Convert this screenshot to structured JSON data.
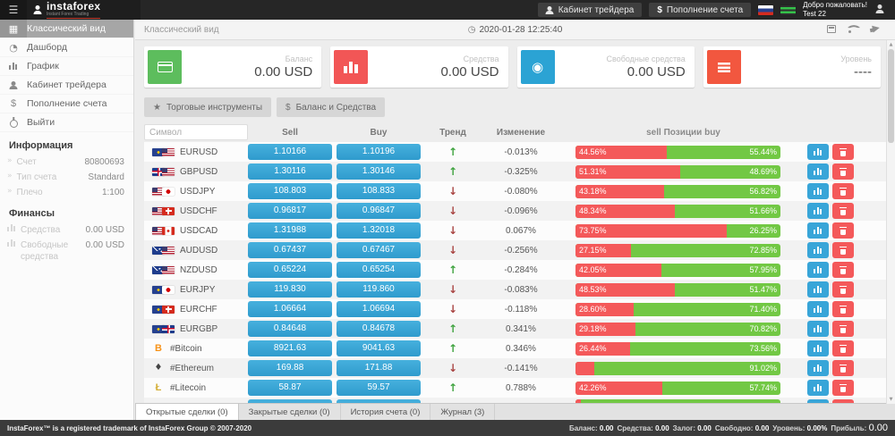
{
  "header": {
    "logo_name": "instaforex",
    "logo_tagline": "Instant Forex Trading",
    "trader_cabinet_label": "Кабинет трейдера",
    "deposit_label": "Пополнение счета",
    "welcome_line1": "Добро пожаловать!",
    "welcome_line2": "Test 22"
  },
  "sidebar": {
    "items": [
      {
        "label": "Классический вид",
        "icon": "classic-view-icon",
        "active": true
      },
      {
        "label": "Дашборд",
        "icon": "dashboard-icon"
      },
      {
        "label": "График",
        "icon": "chart-icon"
      },
      {
        "label": "Кабинет трейдера",
        "icon": "user-icon"
      },
      {
        "label": "Пополнение счета",
        "icon": "dollar-icon"
      },
      {
        "label": "Выйти",
        "icon": "power-icon"
      }
    ],
    "info_title": "Информация",
    "info_rows": [
      {
        "label": "Счет",
        "value": "80800693"
      },
      {
        "label": "Тип счета",
        "value": "Standard"
      },
      {
        "label": "Плечо",
        "value": "1:100"
      }
    ],
    "finance_title": "Финансы",
    "finance_rows": [
      {
        "label": "Средства",
        "value": "0.00 USD"
      },
      {
        "label": "Свободные средства",
        "value": "0.00 USD"
      }
    ]
  },
  "topbar": {
    "title": "Классический вид",
    "datetime": "2020-01-28 12:25:40"
  },
  "cards": [
    {
      "label": "Баланс",
      "value": "0.00 USD",
      "icon": "credit-card-icon",
      "color": "#5dbd5d"
    },
    {
      "label": "Средства",
      "value": "0.00 USD",
      "icon": "bar-chart-icon",
      "color": "#f25656"
    },
    {
      "label": "Свободные средства",
      "value": "0.00 USD",
      "icon": "eye-icon",
      "color": "#2ba3d4"
    },
    {
      "label": "Уровень",
      "value": "----",
      "icon": "menu-lines-icon",
      "color": "#f2573f"
    }
  ],
  "toolbar": {
    "instruments_label": "Торговые инструменты",
    "balance_label": "Баланс и Средства"
  },
  "table": {
    "symbol_placeholder": "Символ",
    "headers": {
      "sell": "Sell",
      "buy": "Buy",
      "trend": "Тренд",
      "change": "Изменение",
      "positions": "sell Позиции buy"
    },
    "trend_glyphs": {
      "up": "↑",
      "down": "↓"
    },
    "rows": [
      {
        "symbol": "EURUSD",
        "icons": [
          {
            "cls": "flag flag-eu",
            "name": "eu-flag-icon"
          },
          {
            "cls": "flag flag-us",
            "name": "us-flag-icon"
          }
        ],
        "sell": "1.10166",
        "buy": "1.10196",
        "trend": "up",
        "change": "-0.013%",
        "sell_pct": 44.56,
        "buy_pct": 55.44,
        "sell_label": "44.56%",
        "buy_label": "55.44%"
      },
      {
        "symbol": "GBPUSD",
        "icons": [
          {
            "cls": "flag flag-gb",
            "name": "gb-flag-icon"
          },
          {
            "cls": "flag flag-us",
            "name": "us-flag-icon"
          }
        ],
        "sell": "1.30116",
        "buy": "1.30146",
        "trend": "up",
        "change": "-0.325%",
        "sell_pct": 51.31,
        "buy_pct": 48.69,
        "sell_label": "51.31%",
        "buy_label": "48.69%"
      },
      {
        "symbol": "USDJPY",
        "icons": [
          {
            "cls": "flag flag-us",
            "name": "us-flag-icon"
          },
          {
            "cls": "flag flag-jp",
            "name": "jp-flag-icon"
          }
        ],
        "sell": "108.803",
        "buy": "108.833",
        "trend": "down",
        "change": "-0.080%",
        "sell_pct": 43.18,
        "buy_pct": 56.82,
        "sell_label": "43.18%",
        "buy_label": "56.82%"
      },
      {
        "symbol": "USDCHF",
        "icons": [
          {
            "cls": "flag flag-us",
            "name": "us-flag-icon"
          },
          {
            "cls": "flag flag-ch",
            "name": "ch-flag-icon"
          }
        ],
        "sell": "0.96817",
        "buy": "0.96847",
        "trend": "down",
        "change": "-0.096%",
        "sell_pct": 48.34,
        "buy_pct": 51.66,
        "sell_label": "48.34%",
        "buy_label": "51.66%"
      },
      {
        "symbol": "USDCAD",
        "icons": [
          {
            "cls": "flag flag-us",
            "name": "us-flag-icon"
          },
          {
            "cls": "flag flag-ca",
            "name": "ca-flag-icon"
          }
        ],
        "sell": "1.31988",
        "buy": "1.32018",
        "trend": "down",
        "change": "0.067%",
        "sell_pct": 73.75,
        "buy_pct": 26.25,
        "sell_label": "73.75%",
        "buy_label": "26.25%"
      },
      {
        "symbol": "AUDUSD",
        "icons": [
          {
            "cls": "flag flag-au",
            "name": "au-flag-icon"
          },
          {
            "cls": "flag flag-us",
            "name": "us-flag-icon"
          }
        ],
        "sell": "0.67437",
        "buy": "0.67467",
        "trend": "down",
        "change": "-0.256%",
        "sell_pct": 27.15,
        "buy_pct": 72.85,
        "sell_label": "27.15%",
        "buy_label": "72.85%"
      },
      {
        "symbol": "NZDUSD",
        "icons": [
          {
            "cls": "flag flag-nz",
            "name": "nz-flag-icon"
          },
          {
            "cls": "flag flag-us",
            "name": "us-flag-icon"
          }
        ],
        "sell": "0.65224",
        "buy": "0.65254",
        "trend": "up",
        "change": "-0.284%",
        "sell_pct": 42.05,
        "buy_pct": 57.95,
        "sell_label": "42.05%",
        "buy_label": "57.95%"
      },
      {
        "symbol": "EURJPY",
        "icons": [
          {
            "cls": "flag flag-eu",
            "name": "eu-flag-icon"
          },
          {
            "cls": "flag flag-jp",
            "name": "jp-flag-icon"
          }
        ],
        "sell": "119.830",
        "buy": "119.860",
        "trend": "down",
        "change": "-0.083%",
        "sell_pct": 48.53,
        "buy_pct": 51.47,
        "sell_label": "48.53%",
        "buy_label": "51.47%"
      },
      {
        "symbol": "EURCHF",
        "icons": [
          {
            "cls": "flag flag-eu",
            "name": "eu-flag-icon"
          },
          {
            "cls": "flag flag-ch",
            "name": "ch-flag-icon"
          }
        ],
        "sell": "1.06664",
        "buy": "1.06694",
        "trend": "down",
        "change": "-0.118%",
        "sell_pct": 28.6,
        "buy_pct": 71.4,
        "sell_label": "28.60%",
        "buy_label": "71.40%"
      },
      {
        "symbol": "EURGBP",
        "icons": [
          {
            "cls": "flag flag-eu",
            "name": "eu-flag-icon"
          },
          {
            "cls": "flag flag-gb",
            "name": "gb-flag-icon"
          }
        ],
        "sell": "0.84648",
        "buy": "0.84678",
        "trend": "up",
        "change": "0.341%",
        "sell_pct": 29.18,
        "buy_pct": 70.82,
        "sell_label": "29.18%",
        "buy_label": "70.82%"
      },
      {
        "symbol": "#Bitcoin",
        "icons": [
          {
            "cls": "crypto crypto-btc",
            "name": "bitcoin-icon",
            "char": "B"
          }
        ],
        "sell": "8921.63",
        "buy": "9041.63",
        "trend": "up",
        "change": "0.346%",
        "sell_pct": 26.44,
        "buy_pct": 73.56,
        "sell_label": "26.44%",
        "buy_label": "73.56%"
      },
      {
        "symbol": "#Ethereum",
        "icons": [
          {
            "cls": "crypto crypto-eth uglyph",
            "name": "ethereum-icon",
            "char": "♦"
          }
        ],
        "sell": "169.88",
        "buy": "171.88",
        "trend": "down",
        "change": "-0.141%",
        "sell_pct": 8.98,
        "buy_pct": 91.02,
        "sell_label": "",
        "buy_label": "91.02%"
      },
      {
        "symbol": "#Litecoin",
        "icons": [
          {
            "cls": "crypto crypto-ltc",
            "name": "litecoin-icon",
            "char": "Ł"
          }
        ],
        "sell": "58.87",
        "buy": "59.57",
        "trend": "up",
        "change": "0.788%",
        "sell_pct": 42.26,
        "buy_pct": 57.74,
        "sell_label": "42.26%",
        "buy_label": "57.74%"
      },
      {
        "symbol": "",
        "partial": true,
        "icons": [],
        "sell": "",
        "buy": "",
        "trend": "down",
        "change": "",
        "sell_pct": 2.5,
        "buy_pct": 97.5,
        "sell_label": "",
        "buy_label": ""
      }
    ]
  },
  "tabs": [
    {
      "label": "Открытые сделки (0)",
      "active": true
    },
    {
      "label": "Закрытые сделки (0)",
      "active": false
    },
    {
      "label": "История счета (0)",
      "active": false
    },
    {
      "label": "Журнал (3)",
      "active": false
    }
  ],
  "footer": {
    "copyright": "InstaForex™ is a registered trademark of InstaForex Group © 2007-2020",
    "stats": [
      {
        "label": "Баланс:",
        "value": "0.00"
      },
      {
        "label": "Средства:",
        "value": "0.00"
      },
      {
        "label": "Залог:",
        "value": "0.00"
      },
      {
        "label": "Свободно:",
        "value": "0.00"
      },
      {
        "label": "Уровень:",
        "value": "0.00%"
      },
      {
        "label": "Прибыль:",
        "value": "0.00"
      }
    ]
  }
}
